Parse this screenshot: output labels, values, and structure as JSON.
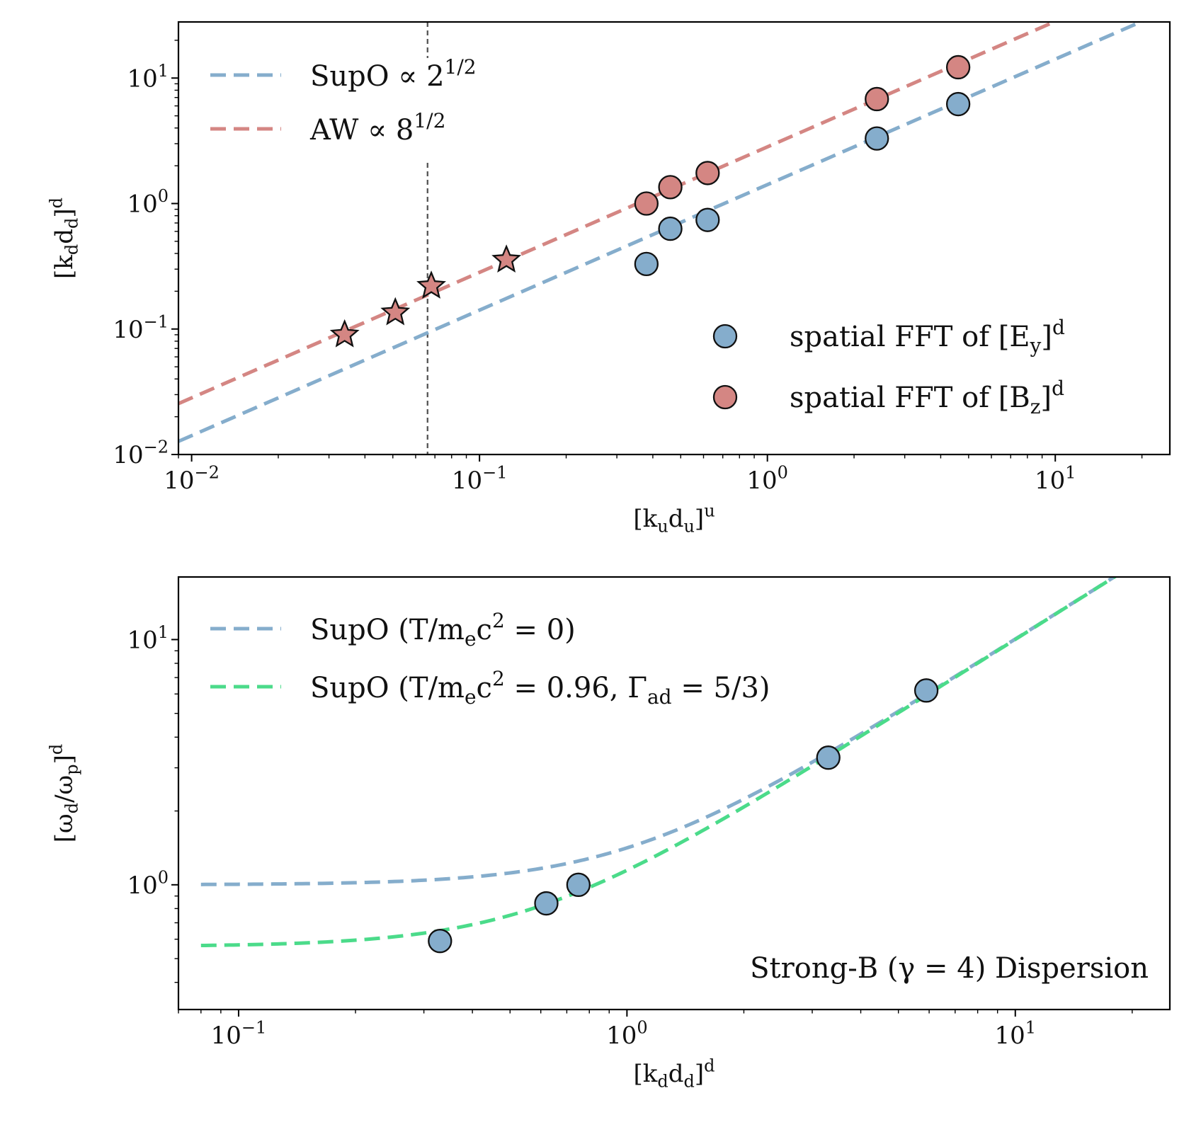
{
  "colors": {
    "blue": "#85adcc",
    "red": "#d48683",
    "green": "#4bdb8a",
    "vline": "#555555",
    "edge": "#111111"
  },
  "chart_data": [
    {
      "type": "scatter",
      "scale": "log-log",
      "xlabel": "[k<sub>u</sub>d<sub>u</sub>]<sup>u</sup>",
      "ylabel": "[k<sub>d</sub>d<sub>d</sub>]<sup>d</sup>",
      "xlim": [
        0.009,
        25
      ],
      "ylim": [
        0.01,
        28
      ],
      "x_ticks": [
        {
          "v": 0.01,
          "label": "10<sup>−2</sup>"
        },
        {
          "v": 0.1,
          "label": "10<sup>−1</sup>"
        },
        {
          "v": 1,
          "label": "10<sup>0</sup>"
        },
        {
          "v": 10,
          "label": "10<sup>1</sup>"
        }
      ],
      "y_ticks": [
        {
          "v": 0.01,
          "label": "10<sup>−2</sup>"
        },
        {
          "v": 0.1,
          "label": "10<sup>−1</sup>"
        },
        {
          "v": 1,
          "label": "10<sup>0</sup>"
        },
        {
          "v": 10,
          "label": "10<sup>1</sup>"
        }
      ],
      "vertical_line_x": 0.066,
      "lines": [
        {
          "name": "SupO  ∝ 2<sup>1/2</sup>",
          "color_key": "blue",
          "factor": 1.414
        },
        {
          "name": "AW  ∝ 8<sup>1/2</sup>",
          "color_key": "red",
          "factor": 2.828
        }
      ],
      "series": [
        {
          "name": "spatial FFT of [E<sub>y</sub>]<sup>d</sup>",
          "color_key": "blue",
          "marker": "circle",
          "x": [
            0.38,
            0.46,
            0.62,
            2.4,
            4.6
          ],
          "y": [
            0.33,
            0.63,
            0.74,
            3.3,
            6.2
          ]
        },
        {
          "name": "spatial FFT of [B<sub>z</sub>]<sup>d</sup>",
          "color_key": "red",
          "marker": "circle",
          "x": [
            0.38,
            0.46,
            0.62,
            2.4,
            4.6
          ],
          "y": [
            1.0,
            1.35,
            1.75,
            6.8,
            12.2
          ]
        },
        {
          "name": "",
          "color_key": "red",
          "marker": "star",
          "x": [
            0.034,
            0.051,
            0.068,
            0.124
          ],
          "y": [
            0.09,
            0.135,
            0.22,
            0.355
          ]
        }
      ],
      "legend_lines_position": "upper-left",
      "legend_points_position": "lower-right"
    },
    {
      "type": "scatter",
      "scale": "log-log",
      "xlabel": "[k<sub>d</sub>d<sub>d</sub>]<sup>d</sup>",
      "ylabel": "[ω<sub>d</sub>/ω<sub>p</sub>]<sup>d</sup>",
      "xlim": [
        0.07,
        25
      ],
      "ylim": [
        0.31,
        18
      ],
      "x_ticks": [
        {
          "v": 0.1,
          "label": "10<sup>−1</sup>"
        },
        {
          "v": 1,
          "label": "10<sup>0</sup>"
        },
        {
          "v": 10,
          "label": "10<sup>1</sup>"
        }
      ],
      "y_ticks": [
        {
          "v": 1,
          "label": "10<sup>0</sup>"
        },
        {
          "v": 10,
          "label": "10<sup>1</sup>"
        }
      ],
      "lines": [
        {
          "name": "SupO (T/m<sub>e</sub>c<sup>2</sup> = 0)",
          "color_key": "blue",
          "omega0": 1.0
        },
        {
          "name": "SupO (T/m<sub>e</sub>c<sup>2</sup> = 0.96, Γ<sub>ad</sub> = 5/3)",
          "color_key": "green",
          "omega0": 0.56
        }
      ],
      "series": [
        {
          "name": "",
          "color_key": "blue",
          "marker": "circle",
          "x": [
            0.33,
            0.62,
            0.75,
            3.3,
            5.9
          ],
          "y": [
            0.59,
            0.84,
            1.0,
            3.3,
            6.2
          ]
        }
      ],
      "annotation": "Strong-B (γ = 4) Dispersion",
      "legend_position": "upper-left"
    }
  ]
}
